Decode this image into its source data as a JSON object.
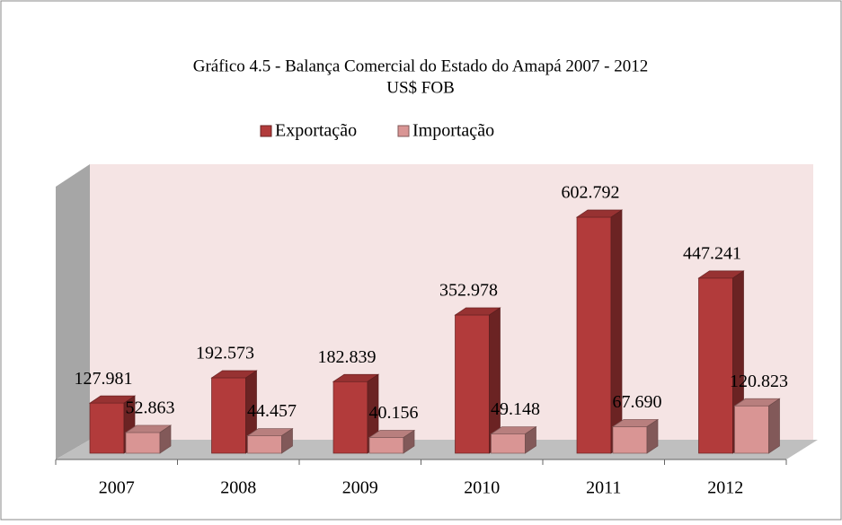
{
  "chart_data": {
    "type": "bar3d",
    "title": "Gráfico 4.5 - Balança Comercial do Estado do Amapá 2007 - 2012",
    "subtitle": "US$ FOB",
    "categories": [
      "2007",
      "2008",
      "2009",
      "2010",
      "2011",
      "2012"
    ],
    "series": [
      {
        "name": "Exportação",
        "color": "#b23b3b",
        "values": [
          127981,
          192573,
          182839,
          352978,
          602792,
          447241
        ],
        "value_labels": [
          "127.981",
          "192.573",
          "182.839",
          "352.978",
          "602.792",
          "447.241"
        ]
      },
      {
        "name": "Importação",
        "color": "#d99594",
        "values": [
          52863,
          44457,
          40156,
          49148,
          67690,
          120823
        ],
        "value_labels": [
          "52.863",
          "44.457",
          "40.156",
          "49.148",
          "67.690",
          "120.823"
        ]
      }
    ]
  }
}
